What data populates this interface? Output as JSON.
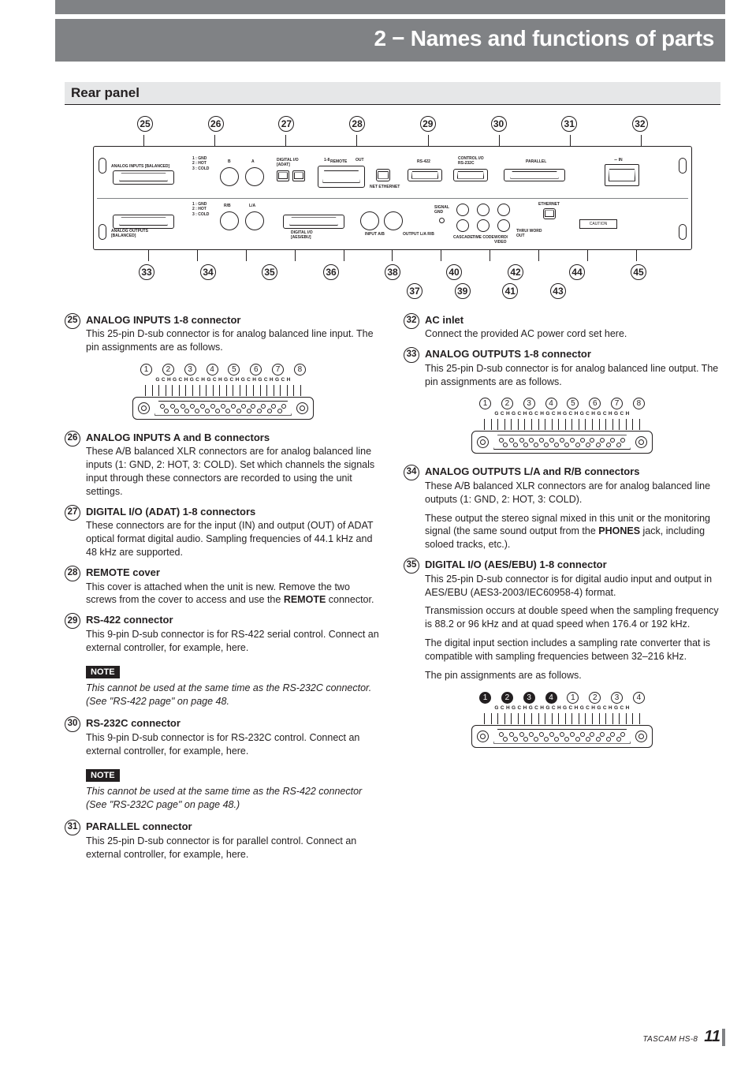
{
  "chapter_title": "2 − Names and functions of parts",
  "section_title": "Rear panel",
  "footer": {
    "model": "TASCAM  HS-8",
    "page": "11"
  },
  "callouts": {
    "top": [
      "25",
      "26",
      "27",
      "28",
      "29",
      "30",
      "31",
      "32"
    ],
    "bottom_row1": [
      "33",
      "34",
      "35",
      "36",
      "38",
      "40",
      "42",
      "44",
      "45"
    ],
    "bottom_row2": [
      "37",
      "39",
      "41",
      "43"
    ]
  },
  "panel_labels": {
    "ai": "ANALOG INPUTS\n[BALANCED]",
    "ao": "ANALOG OUTPUTS\n[BALANCED]",
    "adat": "DIGITAL I/O\n[ADAT]",
    "aes": "DIGITAL I/O\n[AES/EBU]",
    "remote": "REMOTE",
    "ether": "NET ETHERNET",
    "rs422": "RS-422",
    "rs232": "CONTROL I/O\nRS-232C",
    "parallel": "PARALLEL",
    "acin": "∼ IN",
    "sig_gnd": "SIGNAL\nGND",
    "cascade": "CASCADE",
    "timecode": "TIME CODE",
    "word": "WORD/\nVIDEO",
    "inputab": "INPUT A/B",
    "outputla": "OUTPUT L/A  R/B",
    "thru_word": "THRU/ WORD\nOUT",
    "caution": "CAUTION",
    "one_eight": "1-8",
    "in": "IN",
    "out": "OUT",
    "la": "L/A",
    "rb": "R/B",
    "legend": "1 : GND\n2 : HOT\n3 : COLD"
  },
  "pin_diag": {
    "nums8": [
      "1",
      "2",
      "3",
      "4",
      "5",
      "6",
      "7",
      "8"
    ],
    "nums_mixed_solid": [
      "1",
      "2",
      "3",
      "4"
    ],
    "nums_mixed_open": [
      "1",
      "2",
      "3",
      "4"
    ],
    "gch_row": "G C H G C H G C H G C H G C H G C H G C H G C H"
  },
  "left_items": [
    {
      "n": "25",
      "title": "ANALOG INPUTS 1-8 connector",
      "paras": [
        "This 25-pin D-sub connector is for analog balanced line input. The pin assignments are as follows."
      ],
      "has_pin8": true
    },
    {
      "n": "26",
      "title": "ANALOG INPUTS A and B connectors",
      "paras": [
        "These A/B balanced XLR connectors are for analog balanced line inputs (1: GND, 2: HOT, 3: COLD). Set which channels the signals input through these connectors are recorded to using the unit settings."
      ]
    },
    {
      "n": "27",
      "title": "DIGITAL I/O (ADAT) 1-8 connectors",
      "paras": [
        "These connectors are for the input (IN) and output (OUT) of ADAT optical format digital audio. Sampling frequencies of 44.1 kHz and 48 kHz are supported."
      ]
    },
    {
      "n": "28",
      "title": "REMOTE cover",
      "paras": [
        "This cover is attached when the unit is new. Remove the two screws from the cover to access and use the <b>REMOTE</b> connector."
      ]
    },
    {
      "n": "29",
      "title": "RS-422 connector",
      "paras": [
        "This 9-pin D-sub connector is for RS-422 serial control. Connect an external controller, for example, here."
      ],
      "note": "This cannot be used at the same time as the RS-232C connector. (See \"RS-422 page\" on page 48."
    },
    {
      "n": "30",
      "title": "RS-232C connector",
      "paras": [
        "This 9-pin D-sub connector is for RS-232C control. Connect an external controller, for example, here."
      ],
      "note": "This cannot be used at the same time as the RS-422 connector (See \"RS-232C page\" on page 48.)"
    },
    {
      "n": "31",
      "title": "PARALLEL connector",
      "paras": [
        "This 25-pin D-sub connector is for parallel control. Connect an external controller, for example, here."
      ]
    }
  ],
  "right_items": [
    {
      "n": "32",
      "title": "AC inlet",
      "paras": [
        "Connect the provided AC power cord set here."
      ]
    },
    {
      "n": "33",
      "title": "ANALOG OUTPUTS 1-8 connector",
      "paras": [
        "This 25-pin D-sub connector is for analog balanced line output. The pin assignments are as follows."
      ],
      "has_pin8": true
    },
    {
      "n": "34",
      "title": "ANALOG OUTPUTS L/A and R/B connectors",
      "paras": [
        "These A/B balanced XLR connectors are for analog balanced line outputs (1: GND, 2: HOT, 3: COLD).",
        "These output the stereo signal mixed in this unit or the monitoring signal (the same sound output from the <b>PHONES</b> jack, including soloed tracks, etc.)."
      ]
    },
    {
      "n": "35",
      "title": "DIGITAL I/O (AES/EBU) 1-8 connector",
      "paras": [
        "This 25-pin D-sub connector is for digital audio input and output in AES/EBU (AES3-2003/IEC60958-4) format.",
        "Transmission occurs at double speed when the sampling frequency is 88.2 or 96 kHz and at quad speed when 176.4 or 192 kHz.",
        "The digital input section includes a sampling rate converter that is compatible with sampling frequencies between 32–216 kHz.",
        "The pin assignments are as follows."
      ],
      "has_pin_mixed": true
    }
  ],
  "note_label": "NOTE"
}
